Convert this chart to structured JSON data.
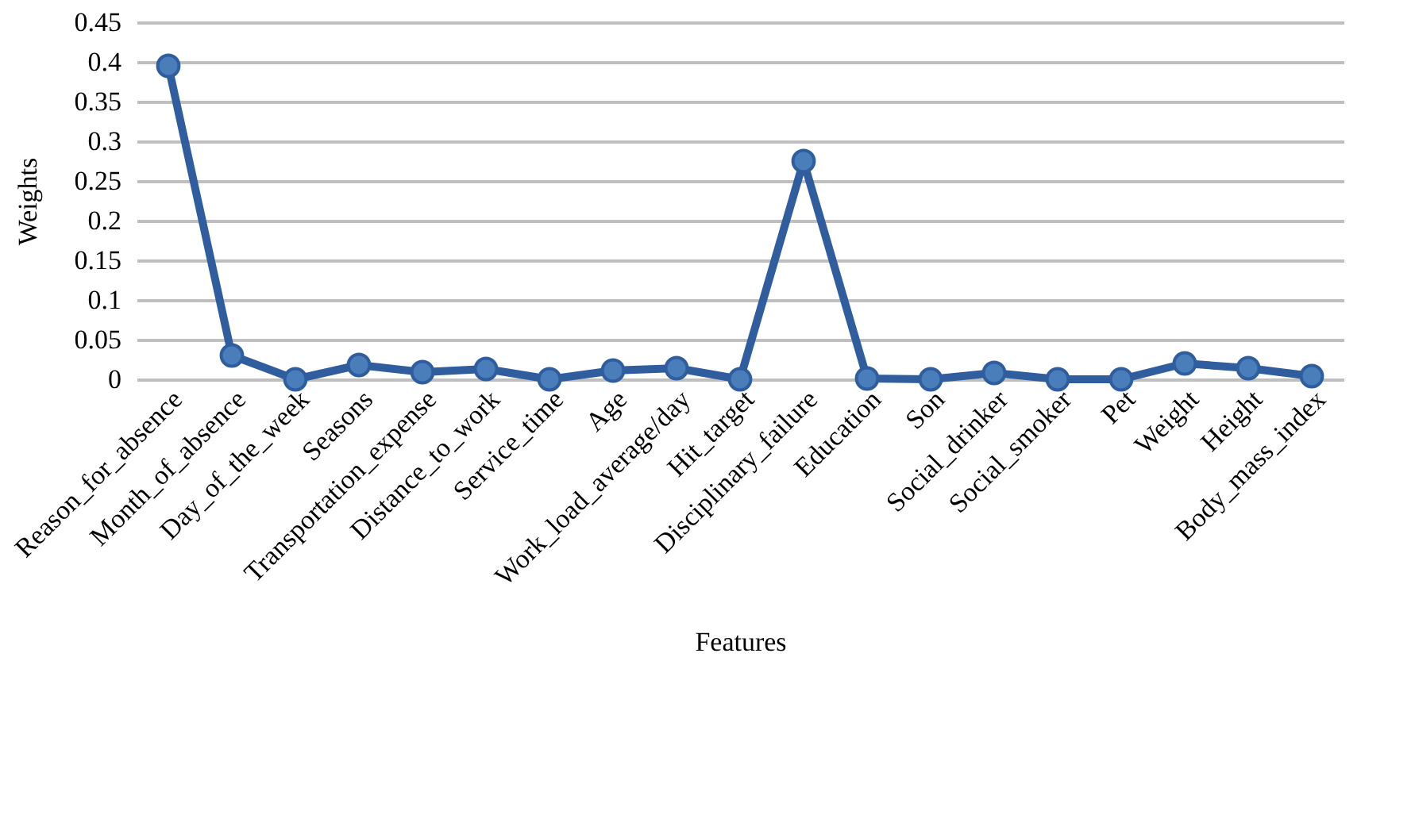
{
  "chart_data": {
    "type": "line",
    "xlabel": "Features",
    "ylabel": "Weights",
    "categories": [
      "Reason_for_absence",
      "Month_of_absence",
      "Day_of_the_week",
      "Seasons",
      "Transportation_expense",
      "Distance_to_work",
      "Service_time",
      "Age",
      "Work_load_average/day",
      "Hit_target",
      "Disciplinary_failure",
      "Education",
      "Son",
      "Social_drinker",
      "Social_smoker",
      "Pet",
      "Weight",
      "Height",
      "Body_mass_index"
    ],
    "series": [
      {
        "color": "#2f5d9e",
        "values": [
          0.395,
          0.03,
          0,
          0.018,
          0.009,
          0.013,
          0,
          0.011,
          0.014,
          0,
          0.275,
          0.001,
          0,
          0.008,
          0,
          0,
          0.02,
          0.014,
          0.004
        ]
      }
    ],
    "ylim": [
      0,
      0.45
    ],
    "yticks": [
      0,
      0.05,
      0.1,
      0.15,
      0.2,
      0.25,
      0.3,
      0.35,
      0.4,
      0.45
    ],
    "grid": "y",
    "marker": "circle",
    "line_style": "solid"
  }
}
